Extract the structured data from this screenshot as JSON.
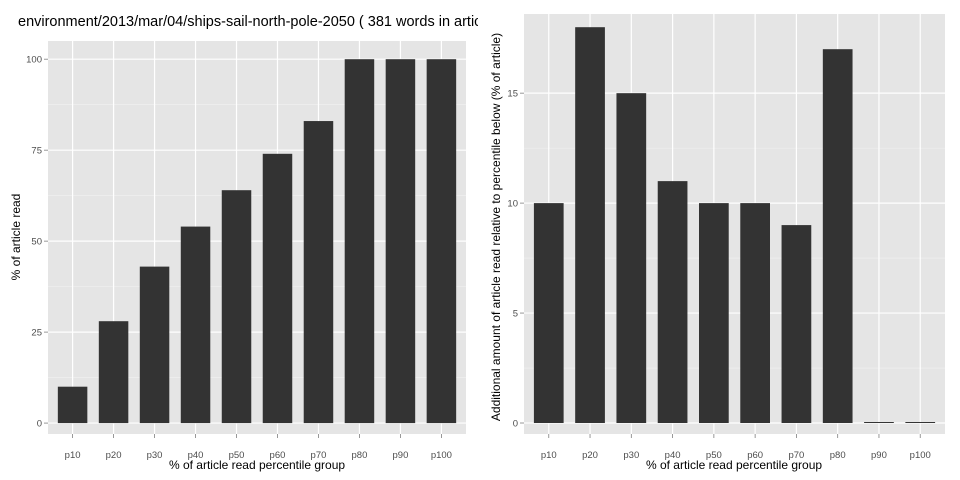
{
  "chart_data": [
    {
      "type": "bar",
      "title": "environment/2013/mar/04/ships-sail-north-pole-2050 ( 381 words in artic",
      "xlabel": "% of article read percentile group",
      "ylabel": "% of article read",
      "categories": [
        "p10",
        "p20",
        "p30",
        "p40",
        "p50",
        "p60",
        "p70",
        "p80",
        "p90",
        "p100"
      ],
      "values": [
        10,
        28,
        43,
        54,
        64,
        74,
        83,
        100,
        100,
        100
      ],
      "ylim": [
        -3,
        105
      ],
      "yticks": [
        0,
        25,
        50,
        75,
        100
      ],
      "ytick_labels": [
        "0",
        "25",
        "50",
        "75",
        "100"
      ],
      "grid": true,
      "bar_color": "#333333",
      "panel_color": "#e5e5e5"
    },
    {
      "type": "bar",
      "title": "",
      "xlabel": "% of article read percentile group",
      "ylabel": "Additional amount of article read relative to percentile below (% of article)",
      "categories": [
        "p10",
        "p20",
        "p30",
        "p40",
        "p50",
        "p60",
        "p70",
        "p80",
        "p90",
        "p100"
      ],
      "values": [
        10,
        18,
        15,
        11,
        10,
        10,
        9,
        17,
        0,
        0
      ],
      "ylim": [
        -0.5,
        18.6
      ],
      "yticks": [
        0,
        5,
        10,
        15
      ],
      "ytick_labels": [
        "0",
        "5",
        "10",
        "15"
      ],
      "grid": true,
      "bar_color": "#333333",
      "panel_color": "#e5e5e5"
    }
  ]
}
